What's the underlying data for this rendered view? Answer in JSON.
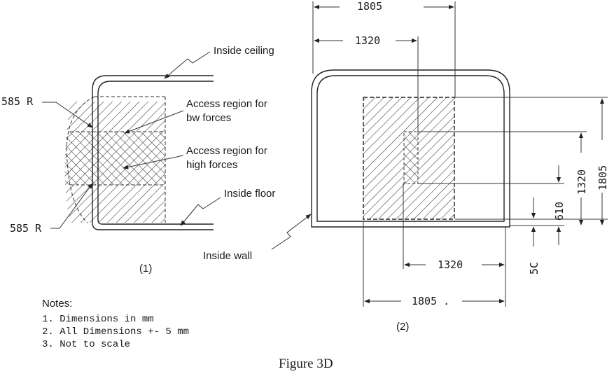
{
  "left_view": {
    "inside_ceiling": "Inside ceiling",
    "inside_floor": "Inside floor",
    "inside_wall": "Inside wall",
    "radius_top": "585 R",
    "radius_bottom": "585 R",
    "access_low": [
      "Access region for",
      "bw forces"
    ],
    "access_high": [
      "Access region for",
      "high forces"
    ],
    "view_number": "(1)"
  },
  "right_view": {
    "top_outer_dim": "1805",
    "top_inner_dim": "1320",
    "right_outer_dim": "1805",
    "right_inner_dim": "1320",
    "right_small_dim": "610",
    "right_tiny_dim": "5C",
    "bottom_inner_dim": "1320",
    "bottom_outer_dim": "1805 .",
    "view_number": "(2)"
  },
  "notes": {
    "title": "Notes:",
    "items": [
      "1. Dimensions in mm",
      "2. All Dimensions +- 5 mm",
      "3. Not to scale"
    ]
  },
  "caption": "Figure 3D"
}
